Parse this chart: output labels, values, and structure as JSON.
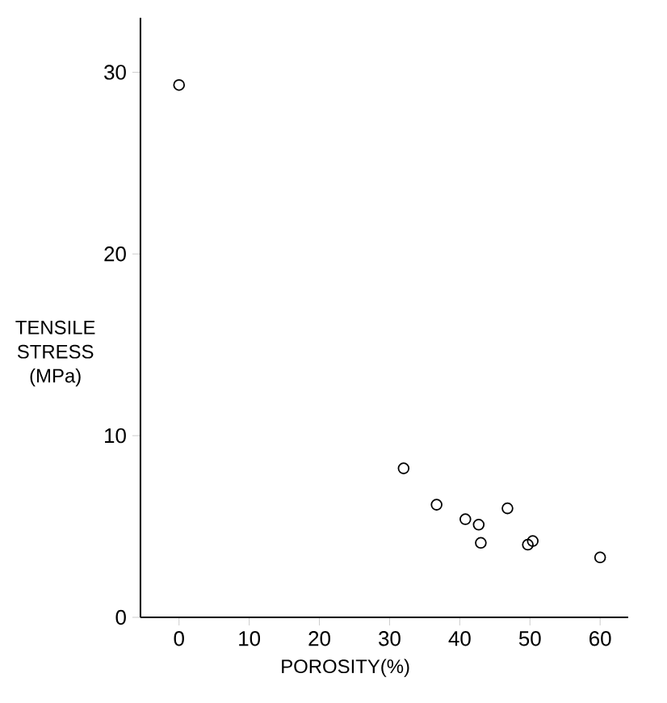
{
  "chart_data": {
    "type": "scatter",
    "xlabel": "POROSITY(%)",
    "ylabel": "TENSILE STRESS (MPa)",
    "x": [
      0,
      32,
      36.7,
      40.8,
      42.7,
      43,
      46.8,
      49.7,
      50.4,
      60
    ],
    "values": [
      29.3,
      8.2,
      6.2,
      5.4,
      5.1,
      4.1,
      6.0,
      4.0,
      4.2,
      3.3
    ],
    "color": "#000000",
    "marker": "circle",
    "xlim": [
      -5.5,
      64
    ],
    "ylim": [
      0,
      33
    ],
    "xticks": [
      0,
      10,
      20,
      30,
      40,
      50,
      60
    ],
    "yticks": [
      0,
      10,
      20,
      30
    ]
  }
}
